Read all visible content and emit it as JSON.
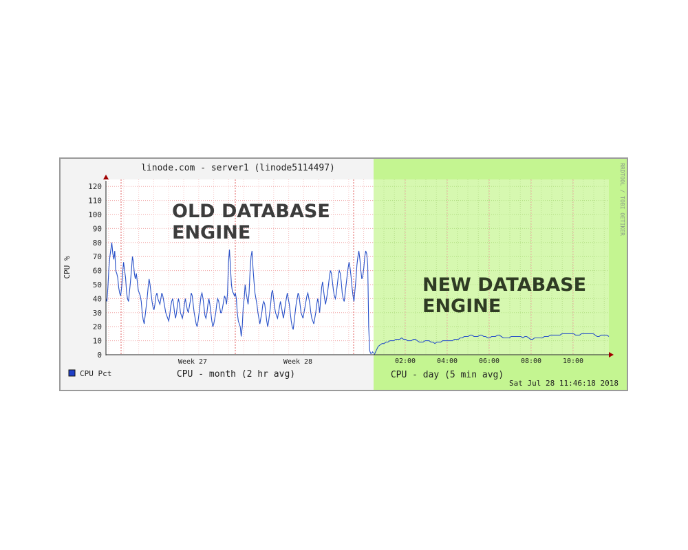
{
  "chart_data": {
    "type": "line",
    "title": "linode.com - server1 (linode5114497)",
    "ylabel": "CPU %",
    "ylim": [
      0,
      125
    ],
    "yticks": [
      0,
      10,
      20,
      30,
      40,
      50,
      60,
      70,
      80,
      90,
      100,
      110,
      120
    ],
    "grid": true,
    "watermark": "RRDTOOL / TOBI OETIKER",
    "legend": {
      "label": "CPU Pct",
      "color": "#1f3fc8",
      "placement": "bottom-left"
    },
    "colors": {
      "series": "#2850c8",
      "left_bg": "#f3f3f3",
      "right_bg": "#c4f591",
      "grid": "#e86a6a",
      "annotation": "#3c3c3c"
    },
    "panels": [
      {
        "name": "month",
        "caption": "CPU - month (2 hr avg)",
        "x_ticks": [
          "Week 27",
          "Week 28"
        ],
        "annotation": [
          "OLD DATABASE",
          "ENGINE"
        ],
        "values": [
          40,
          38,
          48,
          62,
          70,
          75,
          80,
          72,
          68,
          74,
          60,
          58,
          55,
          48,
          44,
          42,
          48,
          58,
          66,
          60,
          55,
          45,
          40,
          38,
          45,
          52,
          60,
          70,
          66,
          58,
          54,
          58,
          52,
          46,
          44,
          42,
          38,
          30,
          25,
          22,
          28,
          34,
          40,
          48,
          54,
          50,
          44,
          38,
          34,
          32,
          36,
          42,
          44,
          40,
          38,
          36,
          40,
          44,
          42,
          38,
          34,
          30,
          28,
          26,
          24,
          28,
          34,
          38,
          40,
          36,
          30,
          26,
          30,
          36,
          40,
          36,
          30,
          28,
          26,
          30,
          36,
          40,
          36,
          32,
          30,
          34,
          38,
          44,
          42,
          36,
          30,
          26,
          22,
          20,
          24,
          30,
          36,
          42,
          44,
          40,
          34,
          28,
          26,
          30,
          36,
          40,
          36,
          30,
          24,
          20,
          22,
          26,
          30,
          36,
          40,
          38,
          34,
          30,
          30,
          34,
          38,
          42,
          40,
          36,
          44,
          66,
          75,
          62,
          50,
          45,
          44,
          42,
          44,
          40,
          30,
          24,
          22,
          20,
          13,
          20,
          34,
          40,
          50,
          44,
          40,
          36,
          44,
          60,
          70,
          74,
          62,
          52,
          44,
          40,
          36,
          30,
          26,
          22,
          26,
          30,
          36,
          38,
          36,
          30,
          24,
          20,
          24,
          30,
          36,
          44,
          46,
          40,
          34,
          30,
          28,
          26,
          30,
          34,
          38,
          34,
          30,
          26,
          30,
          36,
          40,
          44,
          40,
          36,
          30,
          24,
          20,
          18,
          24,
          30,
          36,
          40,
          44,
          42,
          36,
          30,
          28,
          26,
          30,
          34,
          38,
          42,
          44,
          40,
          36,
          30,
          26,
          24,
          22,
          26,
          30,
          36,
          40,
          36,
          30,
          40,
          48,
          52,
          46,
          40,
          36,
          40,
          44,
          50,
          56,
          60,
          58,
          52,
          46,
          42,
          40,
          44,
          50,
          56,
          60,
          58,
          52,
          44,
          40,
          38,
          44,
          50,
          56,
          62,
          66,
          62,
          56,
          48,
          42,
          38,
          46,
          54,
          64,
          70,
          74,
          68,
          60,
          54,
          56,
          62,
          70,
          74,
          72,
          64,
          20,
          3,
          1,
          1,
          2,
          1
        ]
      },
      {
        "name": "day",
        "caption": "CPU - day (5 min avg)",
        "x_ticks": [
          "02:00",
          "04:00",
          "06:00",
          "08:00",
          "10:00"
        ],
        "annotation": [
          "NEW DATABASE",
          "ENGINE"
        ],
        "values": [
          0,
          3,
          6,
          7,
          8,
          8,
          9,
          9,
          10,
          10,
          10,
          11,
          11,
          11,
          12,
          11,
          11,
          10,
          10,
          10,
          11,
          11,
          10,
          9,
          9,
          9,
          10,
          10,
          10,
          9,
          9,
          8,
          9,
          9,
          9,
          10,
          10,
          10,
          10,
          10,
          10,
          11,
          11,
          11,
          12,
          12,
          13,
          13,
          13,
          14,
          14,
          13,
          13,
          13,
          14,
          14,
          13,
          13,
          12,
          12,
          13,
          13,
          13,
          14,
          14,
          13,
          12,
          12,
          12,
          12,
          13,
          13,
          13,
          13,
          13,
          13,
          12,
          13,
          13,
          12,
          11,
          11,
          12,
          12,
          12,
          12,
          12,
          13,
          13,
          13,
          14,
          14,
          14,
          14,
          14,
          14,
          15,
          15,
          15,
          15,
          15,
          15,
          15,
          14,
          14,
          14,
          15,
          15,
          15,
          15,
          15,
          15,
          15,
          14,
          13,
          13,
          14,
          14,
          14,
          14,
          13
        ]
      }
    ],
    "timestamp": "Sat Jul 28 11:46:18 2018"
  }
}
